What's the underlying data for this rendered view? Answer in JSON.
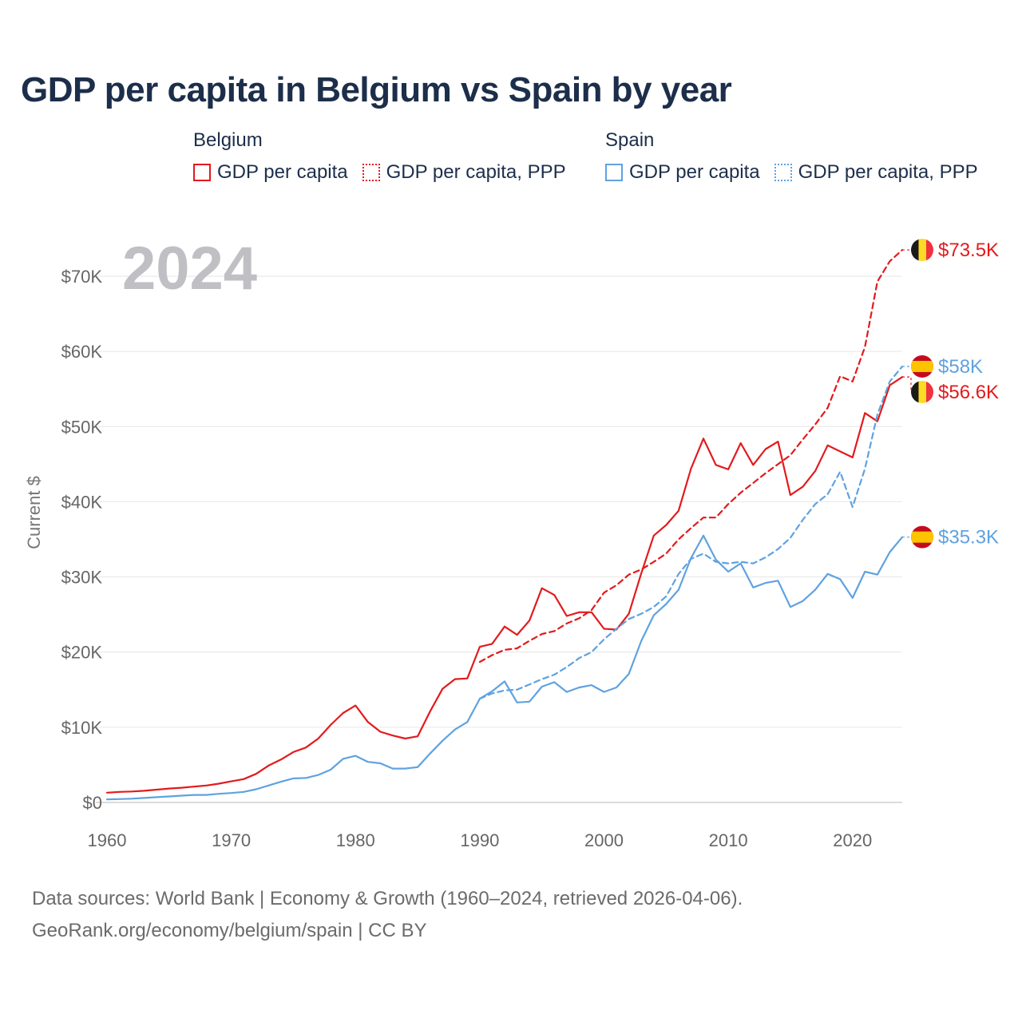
{
  "chart_data": {
    "type": "line",
    "title": "GDP per capita in Belgium vs Spain by year",
    "year_label": "2024",
    "ylabel": "Current $",
    "xlabel": "",
    "xlim": [
      1960,
      2024
    ],
    "ylim": [
      0,
      75000
    ],
    "x_ticks": [
      1960,
      1970,
      1980,
      1990,
      2000,
      2010,
      2020
    ],
    "y_ticks": [
      {
        "value": 0,
        "label": "$0"
      },
      {
        "value": 10000,
        "label": "$10K"
      },
      {
        "value": 20000,
        "label": "$20K"
      },
      {
        "value": 30000,
        "label": "$30K"
      },
      {
        "value": 40000,
        "label": "$40K"
      },
      {
        "value": 50000,
        "label": "$50K"
      },
      {
        "value": 60000,
        "label": "$60K"
      },
      {
        "value": 70000,
        "label": "$70K"
      }
    ],
    "legend": [
      {
        "group": "Belgium",
        "items": [
          {
            "label": "GDP per capita",
            "color": "#e31a1c",
            "style": "solid"
          },
          {
            "label": "GDP per capita, PPP",
            "color": "#e31a1c",
            "style": "dotted"
          }
        ]
      },
      {
        "group": "Spain",
        "items": [
          {
            "label": "GDP per capita",
            "color": "#5fa2e0",
            "style": "solid"
          },
          {
            "label": "GDP per capita, PPP",
            "color": "#5fa2e0",
            "style": "dotted"
          }
        ]
      }
    ],
    "series": [
      {
        "name": "Belgium GDP per capita",
        "country": "belgium",
        "color": "#e31a1c",
        "dashed": false,
        "end_label": "$56.6K",
        "start_year": 1960,
        "values": [
          1300,
          1400,
          1450,
          1550,
          1700,
          1850,
          1950,
          2100,
          2250,
          2500,
          2800,
          3100,
          3800,
          4900,
          5700,
          6700,
          7300,
          8500,
          10300,
          11900,
          12900,
          10700,
          9400,
          8900,
          8500,
          8800,
          12100,
          15100,
          16400,
          16500,
          20700,
          21100,
          23400,
          22300,
          24200,
          28500,
          27600,
          24800,
          25300,
          25300,
          23100,
          23000,
          25100,
          30500,
          35500,
          36900,
          38800,
          44400,
          48400,
          44900,
          44300,
          47800,
          44900,
          47000,
          48000,
          40900,
          42000,
          44100,
          47500,
          46700,
          45900,
          51800,
          50700,
          55500,
          56600
        ]
      },
      {
        "name": "Belgium GDP per capita, PPP",
        "country": "belgium",
        "color": "#e31a1c",
        "dashed": true,
        "end_label": "$73.5K",
        "start_year": 1990,
        "values": [
          18700,
          19600,
          20300,
          20500,
          21500,
          22400,
          22800,
          23800,
          24500,
          25600,
          27900,
          28900,
          30300,
          31000,
          32000,
          33100,
          35000,
          36500,
          37900,
          37900,
          39700,
          41200,
          42500,
          43800,
          45000,
          46200,
          48300,
          50300,
          52500,
          56700,
          56000,
          60600,
          69300,
          72000,
          73500
        ]
      },
      {
        "name": "Spain GDP per capita",
        "country": "spain",
        "color": "#5fa2e0",
        "dashed": false,
        "end_label": "$35.3K",
        "start_year": 1960,
        "values": [
          400,
          450,
          500,
          600,
          700,
          800,
          900,
          1000,
          1000,
          1150,
          1250,
          1400,
          1750,
          2250,
          2750,
          3200,
          3250,
          3650,
          4350,
          5800,
          6200,
          5400,
          5200,
          4500,
          4500,
          4700,
          6500,
          8200,
          9700,
          10700,
          13800,
          14800,
          16100,
          13300,
          13400,
          15400,
          16000,
          14700,
          15300,
          15600,
          14700,
          15300,
          17100,
          21500,
          24900,
          26400,
          28300,
          32500,
          35500,
          32300,
          30700,
          31800,
          28600,
          29200,
          29500,
          26000,
          26800,
          28300,
          30400,
          29700,
          27200,
          30700,
          30300,
          33300,
          35300
        ]
      },
      {
        "name": "Spain GDP per capita, PPP",
        "country": "spain",
        "color": "#5fa2e0",
        "dashed": true,
        "end_label": "$58K",
        "start_year": 1990,
        "values": [
          13800,
          14500,
          14900,
          15000,
          15700,
          16400,
          17000,
          18000,
          19200,
          20000,
          21700,
          23100,
          24400,
          25100,
          26000,
          27400,
          30400,
          32400,
          33100,
          32000,
          31800,
          32000,
          31800,
          32600,
          33700,
          35200,
          37600,
          39700,
          41000,
          44000,
          39300,
          44400,
          51600,
          56000,
          58000
        ]
      }
    ]
  },
  "footer": {
    "sources": "Data sources: World Bank | Economy & Growth (1960–2024, retrieved 2026-04-06).",
    "credit": "GeoRank.org/economy/belgium/spain | CC BY"
  }
}
